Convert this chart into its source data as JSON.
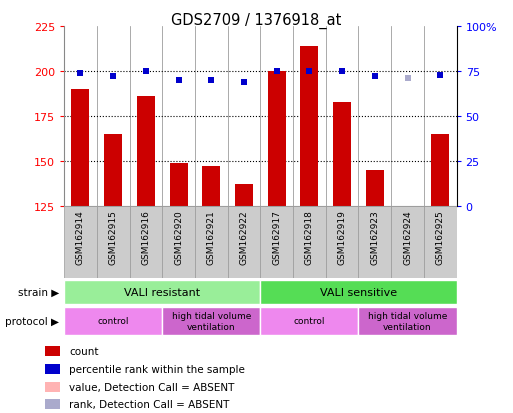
{
  "title": "GDS2709 / 1376918_at",
  "samples": [
    "GSM162914",
    "GSM162915",
    "GSM162916",
    "GSM162920",
    "GSM162921",
    "GSM162922",
    "GSM162917",
    "GSM162918",
    "GSM162919",
    "GSM162923",
    "GSM162924",
    "GSM162925"
  ],
  "counts": [
    190,
    165,
    186,
    149,
    147,
    137,
    200,
    214,
    183,
    145,
    125,
    165
  ],
  "counts_absent": [
    false,
    false,
    false,
    false,
    false,
    false,
    false,
    false,
    false,
    false,
    true,
    false
  ],
  "ranks": [
    74,
    72,
    75,
    70,
    70,
    69,
    75,
    75,
    75,
    72,
    71,
    73
  ],
  "ranks_absent": [
    false,
    false,
    false,
    false,
    false,
    false,
    false,
    false,
    false,
    false,
    true,
    false
  ],
  "ylim_left": [
    125,
    225
  ],
  "ylim_right": [
    0,
    100
  ],
  "yticks_left": [
    125,
    150,
    175,
    200,
    225
  ],
  "yticks_right": [
    0,
    25,
    50,
    75,
    100
  ],
  "ytick_labels_right": [
    "0",
    "25",
    "50",
    "75",
    "100%"
  ],
  "bar_color": "#cc0000",
  "bar_absent_color": "#ffb3b3",
  "rank_color": "#0000cc",
  "rank_absent_color": "#aaaacc",
  "strain_groups": [
    {
      "label": "VALI resistant",
      "start": 0,
      "end": 6,
      "color": "#99ee99"
    },
    {
      "label": "VALI sensitive",
      "start": 6,
      "end": 12,
      "color": "#55dd55"
    }
  ],
  "protocol_groups": [
    {
      "label": "control",
      "start": 0,
      "end": 3,
      "color": "#ee88ee"
    },
    {
      "label": "high tidal volume\nventilation",
      "start": 3,
      "end": 6,
      "color": "#cc66cc"
    },
    {
      "label": "control",
      "start": 6,
      "end": 9,
      "color": "#ee88ee"
    },
    {
      "label": "high tidal volume\nventilation",
      "start": 9,
      "end": 12,
      "color": "#cc66cc"
    }
  ],
  "legend_items": [
    {
      "label": "count",
      "color": "#cc0000"
    },
    {
      "label": "percentile rank within the sample",
      "color": "#0000cc"
    },
    {
      "label": "value, Detection Call = ABSENT",
      "color": "#ffb3b3"
    },
    {
      "label": "rank, Detection Call = ABSENT",
      "color": "#aaaacc"
    }
  ],
  "bar_width": 0.55,
  "rank_marker_size": 5,
  "xticklabel_bg": "#cccccc",
  "xticklabel_border": "#999999"
}
